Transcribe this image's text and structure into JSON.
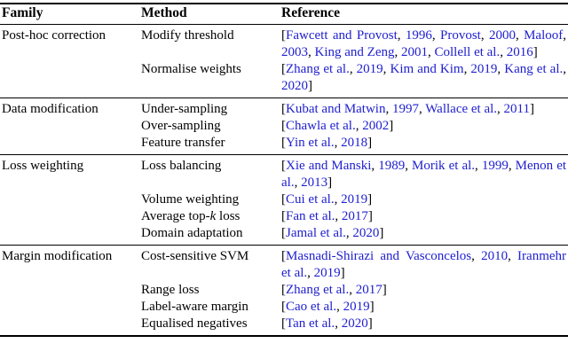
{
  "table": {
    "link_color": "#2020d0",
    "text_color": "#000000",
    "bracket_open": "[",
    "bracket_close": "]",
    "separator": ", ",
    "headers": [
      "Family",
      "Method",
      "Reference"
    ],
    "groups": [
      {
        "family": "Post-hoc correction",
        "rows": [
          {
            "method": "Modify threshold",
            "citations": [
              "Fawcett and Provost",
              "1996",
              "Provost",
              "2000",
              "Maloof",
              "2003",
              "King and Zeng",
              "2001",
              "Collell et al.",
              "2016"
            ]
          },
          {
            "method": "Normalise weights",
            "citations": [
              "Zhang et al.",
              "2019",
              "Kim and Kim",
              "2019",
              "Kang et al.",
              "2020"
            ]
          }
        ]
      },
      {
        "family": "Data modification",
        "rows": [
          {
            "method": "Under-sampling",
            "citations": [
              "Kubat and Matwin",
              "1997",
              "Wallace et al.",
              "2011"
            ]
          },
          {
            "method": "Over-sampling",
            "citations": [
              "Chawla et al.",
              "2002"
            ]
          },
          {
            "method": "Feature transfer",
            "citations": [
              "Yin et al.",
              "2018"
            ]
          }
        ]
      },
      {
        "family": "Loss weighting",
        "rows": [
          {
            "method": "Loss balancing",
            "citations": [
              "Xie and Manski",
              "1989",
              "Morik et al.",
              "1999",
              "Menon et al.",
              "2013"
            ]
          },
          {
            "method": "Volume weighting",
            "citations": [
              "Cui et al.",
              "2019"
            ]
          },
          {
            "method": "Average top-*k* loss",
            "citations": [
              "Fan et al.",
              "2017"
            ]
          },
          {
            "method": "Domain adaptation",
            "citations": [
              "Jamal et al.",
              "2020"
            ]
          }
        ]
      },
      {
        "family": "Margin modification",
        "rows": [
          {
            "method": "Cost-sensitive SVM",
            "citations": [
              "Masnadi-Shirazi and Vasconcelos",
              "2010",
              "Iranmehr et al.",
              "2019"
            ]
          },
          {
            "method": "Range loss",
            "citations": [
              "Zhang et al.",
              "2017"
            ]
          },
          {
            "method": "Label-aware margin",
            "citations": [
              "Cao et al.",
              "2019"
            ]
          },
          {
            "method": "Equalised negatives",
            "citations": [
              "Tan et al.",
              "2020"
            ]
          }
        ]
      }
    ]
  }
}
